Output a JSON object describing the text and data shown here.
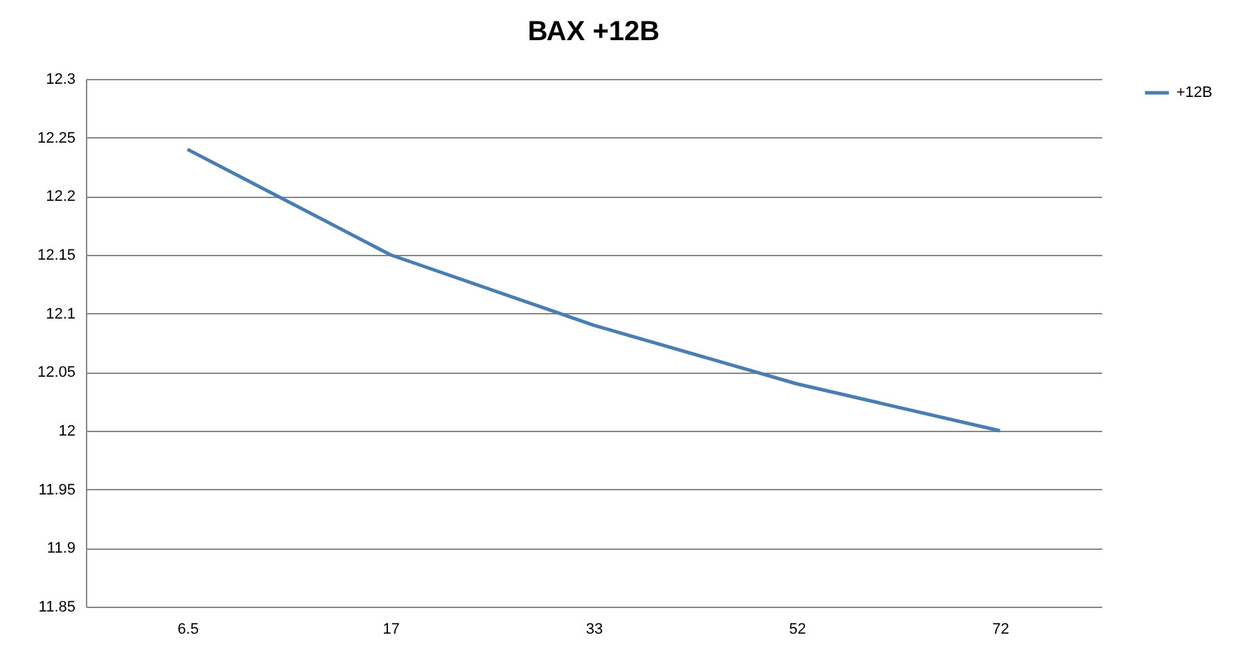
{
  "chart_data": {
    "type": "line",
    "title": "ВАХ +12В",
    "categories": [
      "6.5",
      "17",
      "33",
      "52",
      "72"
    ],
    "series": [
      {
        "name": "+12В",
        "color": "#4a7eb0",
        "values": [
          12.24,
          12.15,
          12.09,
          12.04,
          12.0
        ]
      }
    ],
    "ylim": [
      11.85,
      12.3
    ],
    "yticks": [
      11.85,
      11.9,
      11.95,
      12,
      12.05,
      12.1,
      12.15,
      12.2,
      12.25,
      12.3
    ],
    "grid": "y",
    "legend": "right"
  }
}
